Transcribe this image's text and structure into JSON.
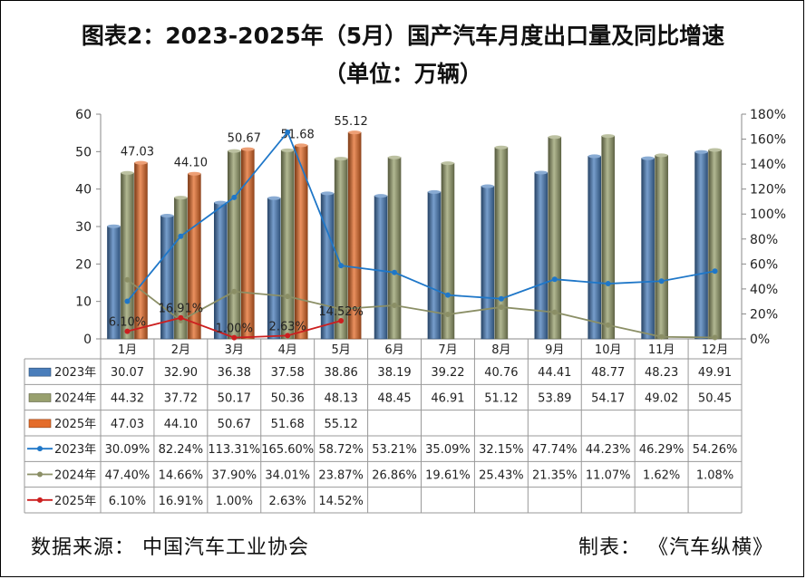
{
  "title": "图表2：2023-2025年（5月）国产汽车月度出口量及同比增速",
  "subtitle": "（单位：万辆）",
  "source": "数据来源：  中国汽车工业协会",
  "maker": "制表：  《汽车纵横》",
  "chart_data": {
    "type": "bar",
    "categories": [
      "1月",
      "2月",
      "3月",
      "4月",
      "5月",
      "6月",
      "7月",
      "8月",
      "9月",
      "10月",
      "11月",
      "12月"
    ],
    "y_left": {
      "ylim": [
        0,
        60
      ],
      "ticks": [
        "0",
        "10",
        "20",
        "30",
        "40",
        "50",
        "60"
      ]
    },
    "y_right": {
      "ylim": [
        0,
        180
      ],
      "ticks": [
        "0%",
        "20%",
        "40%",
        "60%",
        "80%",
        "100%",
        "120%",
        "140%",
        "160%",
        "180%"
      ]
    },
    "bar_series": [
      {
        "name": "2023年",
        "color": "#4a7ebb",
        "values": [
          30.07,
          32.9,
          36.38,
          37.58,
          38.86,
          38.19,
          39.22,
          40.76,
          44.41,
          48.77,
          48.23,
          49.91
        ],
        "labels": [
          "30.07",
          "32.90",
          "36.38",
          "37.58",
          "38.86",
          "38.19",
          "39.22",
          "40.76",
          "44.41",
          "48.77",
          "48.23",
          "49.91"
        ]
      },
      {
        "name": "2024年",
        "color": "#98a06e",
        "values": [
          44.32,
          37.72,
          50.17,
          50.36,
          48.13,
          48.45,
          46.91,
          51.12,
          53.89,
          54.17,
          49.02,
          50.45
        ],
        "labels": [
          "44.32",
          "37.72",
          "50.17",
          "50.36",
          "48.13",
          "48.45",
          "46.91",
          "51.12",
          "53.89",
          "54.17",
          "49.02",
          "50.45"
        ]
      },
      {
        "name": "2025年",
        "color": "#e46c2a",
        "values": [
          47.03,
          44.1,
          50.67,
          51.68,
          55.12,
          null,
          null,
          null,
          null,
          null,
          null,
          null
        ],
        "labels": [
          "47.03",
          "44.10",
          "50.67",
          "51.68",
          "55.12",
          "",
          "",
          "",
          "",
          "",
          "",
          ""
        ]
      }
    ],
    "line_series": [
      {
        "name": "2023年",
        "color": "#1f77c8",
        "values": [
          30.09,
          82.24,
          113.31,
          165.6,
          58.72,
          53.21,
          35.09,
          32.15,
          47.74,
          44.23,
          46.29,
          54.26
        ],
        "labels": [
          "30.09%",
          "82.24%",
          "113.31%",
          "165.60%",
          "58.72%",
          "53.21%",
          "35.09%",
          "32.15%",
          "47.74%",
          "44.23%",
          "46.29%",
          "54.26%"
        ]
      },
      {
        "name": "2024年",
        "color": "#8b8f66",
        "values": [
          47.4,
          14.66,
          37.9,
          34.01,
          23.87,
          26.86,
          19.61,
          25.43,
          21.35,
          11.07,
          1.62,
          1.08
        ],
        "labels": [
          "47.40%",
          "14.66%",
          "37.90%",
          "34.01%",
          "23.87%",
          "26.86%",
          "19.61%",
          "25.43%",
          "21.35%",
          "11.07%",
          "1.62%",
          "1.08%"
        ]
      },
      {
        "name": "2025年",
        "color": "#cc1f1f",
        "values": [
          6.1,
          16.91,
          1.0,
          2.63,
          14.52,
          null,
          null,
          null,
          null,
          null,
          null,
          null
        ],
        "labels": [
          "6.10%",
          "16.91%",
          "1.00%",
          "2.63%",
          "14.52%",
          "",
          "",
          "",
          "",
          "",
          "",
          ""
        ]
      }
    ],
    "bar_top_labels_series": 2,
    "line_point_labels_series": 2,
    "grid": false,
    "legend": "data-table"
  }
}
